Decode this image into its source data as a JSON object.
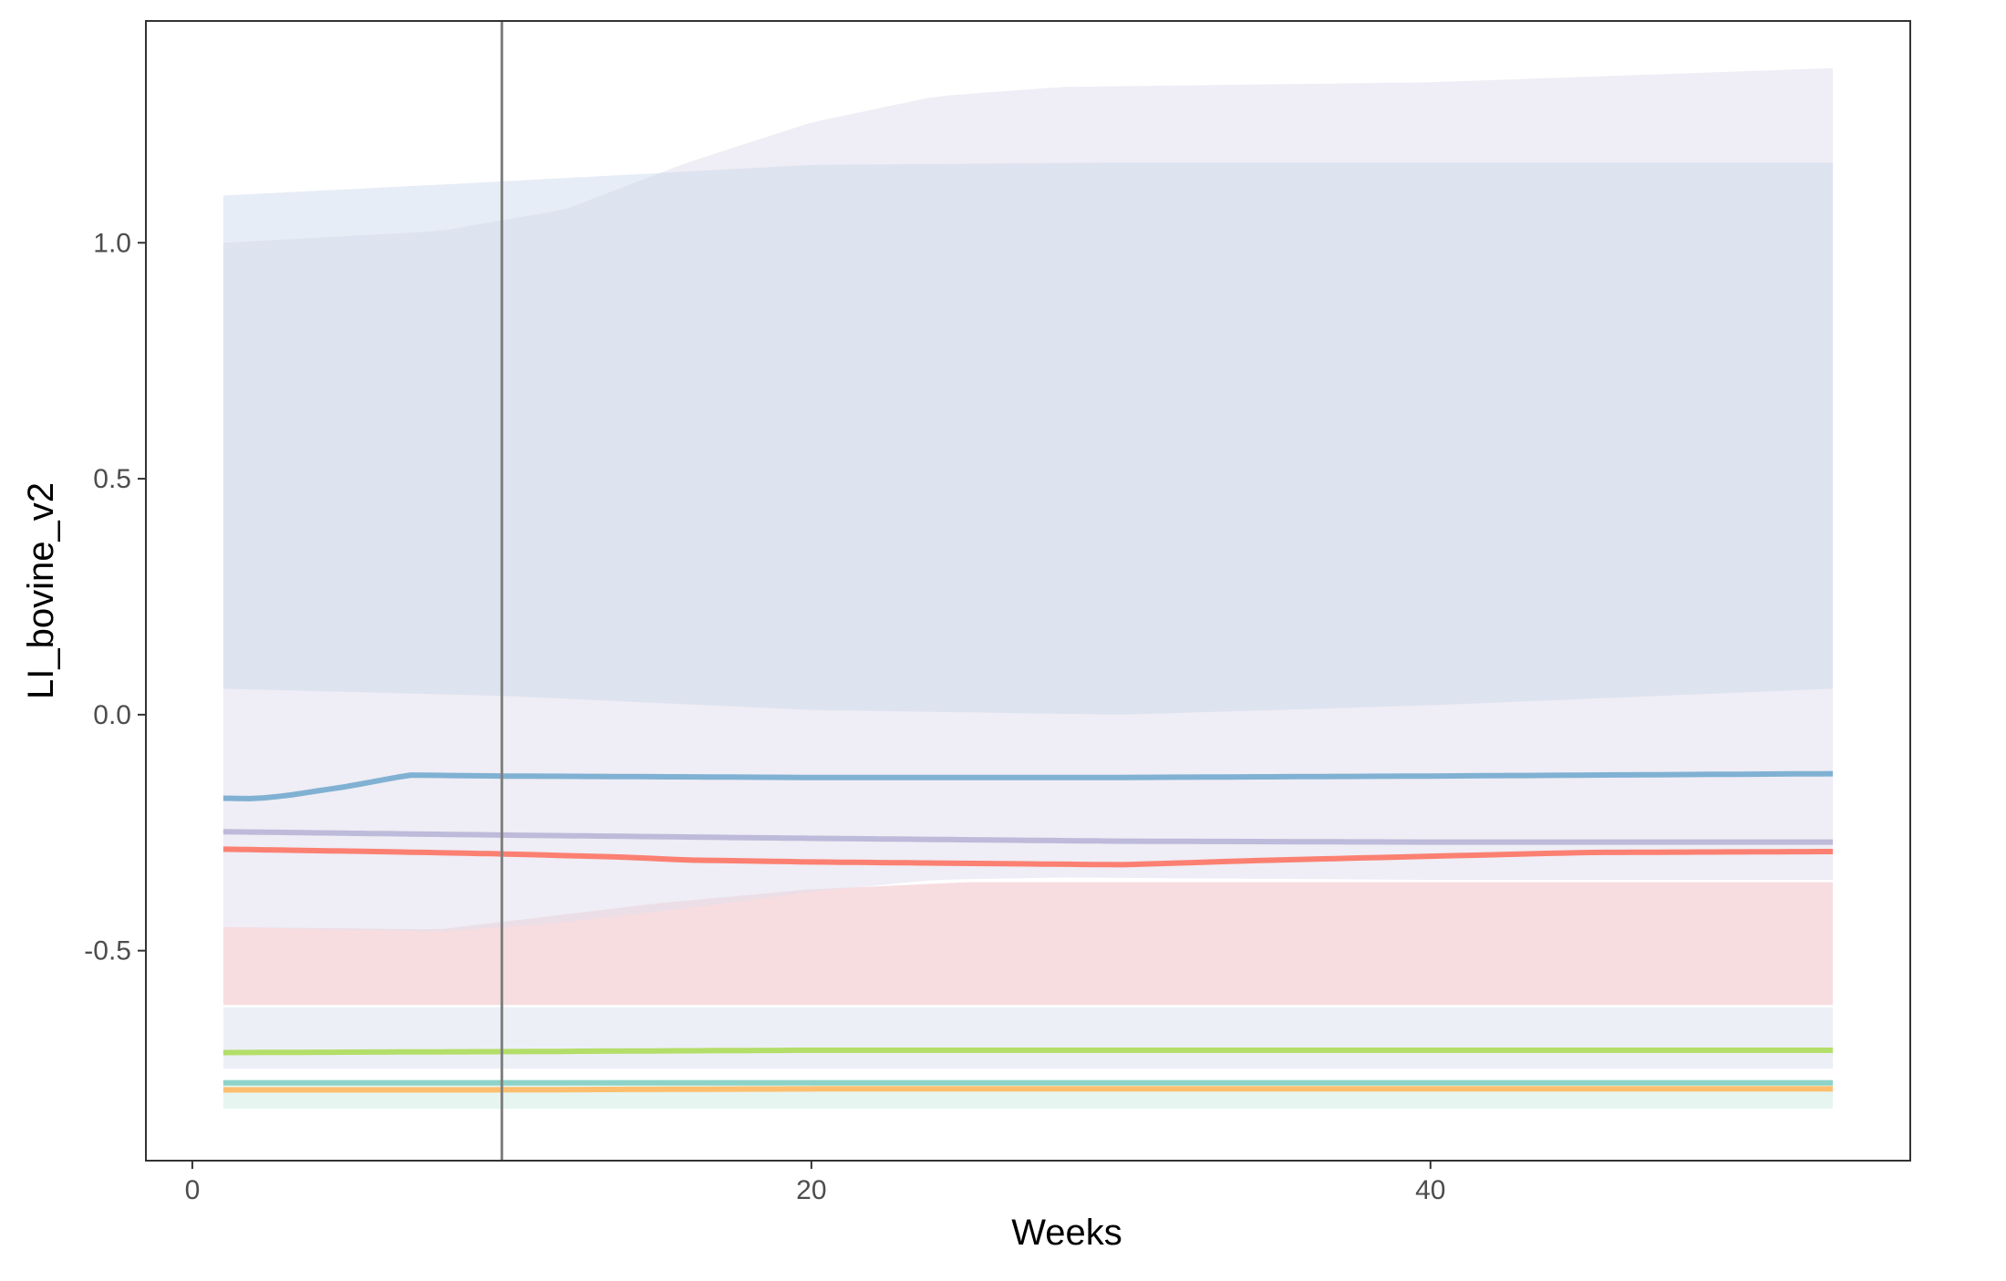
{
  "chart_data": {
    "type": "line",
    "title": "",
    "xlabel": "Weeks",
    "ylabel": "LI_bovine_v2",
    "xlim": [
      -1.5,
      55.5
    ],
    "ylim": [
      -0.945,
      1.47
    ],
    "xticks": [
      0,
      20,
      40
    ],
    "xtick_labels": [
      "0",
      "20",
      "40"
    ],
    "yticks": [
      -0.5,
      0.0,
      0.5,
      1.0
    ],
    "ytick_labels": [
      "-0.5",
      "0.0",
      "0.5",
      "1.0"
    ],
    "grid": false,
    "legend": "none",
    "vline": {
      "x": 10,
      "color": "#808080"
    },
    "bands": [
      {
        "color": "#c9e9dd",
        "opacity": 0.45,
        "x": [
          1,
          53
        ],
        "lower": [
          -0.835,
          -0.835
        ],
        "upper": [
          -0.775,
          -0.775
        ]
      },
      {
        "color": "#d7dcee",
        "opacity": 0.45,
        "x": [
          1,
          53
        ],
        "lower": [
          -0.75,
          -0.75
        ],
        "upper": [
          -0.62,
          -0.62
        ]
      },
      {
        "color": "#f2c6cc",
        "opacity": 0.6,
        "x": [
          1,
          8,
          15,
          20,
          25,
          30,
          40,
          53
        ],
        "lower": [
          -0.615,
          -0.615,
          -0.615,
          -0.615,
          -0.615,
          -0.615,
          -0.615,
          -0.615
        ],
        "upper": [
          -0.45,
          -0.455,
          -0.4,
          -0.37,
          -0.355,
          -0.355,
          -0.355,
          -0.355
        ]
      },
      {
        "color": "#e2dfec",
        "opacity": 0.55,
        "x": [
          1,
          8,
          12,
          16,
          20,
          24,
          28,
          40,
          53
        ],
        "lower": [
          -0.45,
          -0.46,
          -0.44,
          -0.41,
          -0.375,
          -0.35,
          -0.345,
          -0.35,
          -0.35
        ],
        "upper": [
          1.0,
          1.025,
          1.07,
          1.17,
          1.255,
          1.31,
          1.33,
          1.34,
          1.37
        ]
      },
      {
        "color": "#c9d7ea",
        "opacity": 0.45,
        "x": [
          1,
          10,
          20,
          30,
          40,
          53
        ],
        "lower": [
          0.055,
          0.04,
          0.01,
          0.0,
          0.02,
          0.055
        ],
        "upper": [
          1.1,
          1.13,
          1.165,
          1.17,
          1.17,
          1.17
        ]
      }
    ],
    "series": [
      {
        "color": "#fdbf6f",
        "x": [
          1,
          10,
          20,
          30,
          40,
          53
        ],
        "y": [
          -0.795,
          -0.795,
          -0.793,
          -0.793,
          -0.793,
          -0.793
        ]
      },
      {
        "color": "#8dd3c7",
        "x": [
          1,
          10,
          20,
          30,
          40,
          53
        ],
        "y": [
          -0.78,
          -0.78,
          -0.78,
          -0.78,
          -0.78,
          -0.78
        ]
      },
      {
        "color": "#b3de69",
        "x": [
          1,
          10,
          20,
          30,
          40,
          53
        ],
        "y": [
          -0.716,
          -0.714,
          -0.711,
          -0.711,
          -0.711,
          -0.711
        ]
      },
      {
        "color": "#bebada",
        "x": [
          1,
          10,
          20,
          30,
          40,
          53
        ],
        "y": [
          -0.248,
          -0.255,
          -0.262,
          -0.268,
          -0.27,
          -0.27
        ]
      },
      {
        "color": "#fb8072",
        "x": [
          1,
          6,
          10,
          14,
          16,
          20,
          25,
          30,
          35,
          40,
          45,
          53
        ],
        "y": [
          -0.285,
          -0.29,
          -0.295,
          -0.302,
          -0.308,
          -0.312,
          -0.315,
          -0.318,
          -0.308,
          -0.3,
          -0.292,
          -0.29
        ]
      },
      {
        "color": "#80b1d3",
        "x": [
          1,
          2,
          3,
          5,
          7,
          10,
          20,
          30,
          40,
          53
        ],
        "y": [
          -0.177,
          -0.178,
          -0.172,
          -0.152,
          -0.128,
          -0.13,
          -0.133,
          -0.133,
          -0.13,
          -0.125
        ]
      }
    ]
  }
}
